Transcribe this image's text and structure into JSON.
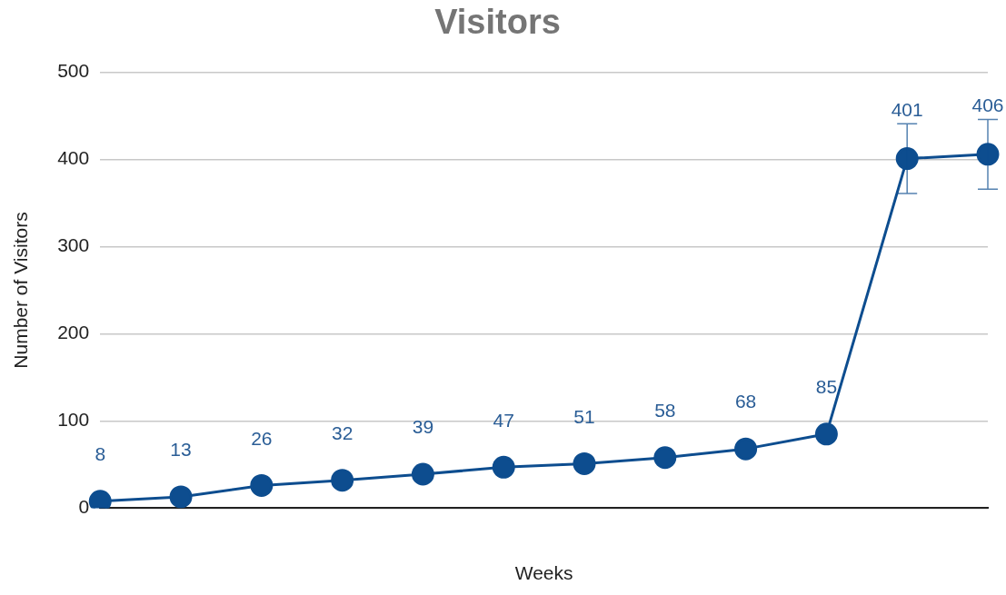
{
  "chart_data": {
    "type": "line",
    "title": "Visitors",
    "xlabel": "Weeks",
    "ylabel": "Number of Visitors",
    "categories": [
      null,
      null,
      null,
      null,
      null,
      null,
      null,
      null,
      null,
      null,
      null,
      null
    ],
    "series": [
      {
        "color": "#0d4d8f",
        "values": [
          8,
          13,
          26,
          32,
          39,
          47,
          51,
          58,
          68,
          85,
          401,
          406
        ],
        "errors": [
          null,
          null,
          null,
          null,
          null,
          null,
          null,
          null,
          null,
          null,
          40,
          40
        ]
      }
    ],
    "ylim": [
      0,
      500
    ],
    "yticks": [
      0,
      100,
      200,
      300,
      400,
      500
    ],
    "grid": "y",
    "legend": false,
    "marker": "circle",
    "line_style": "solid",
    "data_labels": true
  }
}
